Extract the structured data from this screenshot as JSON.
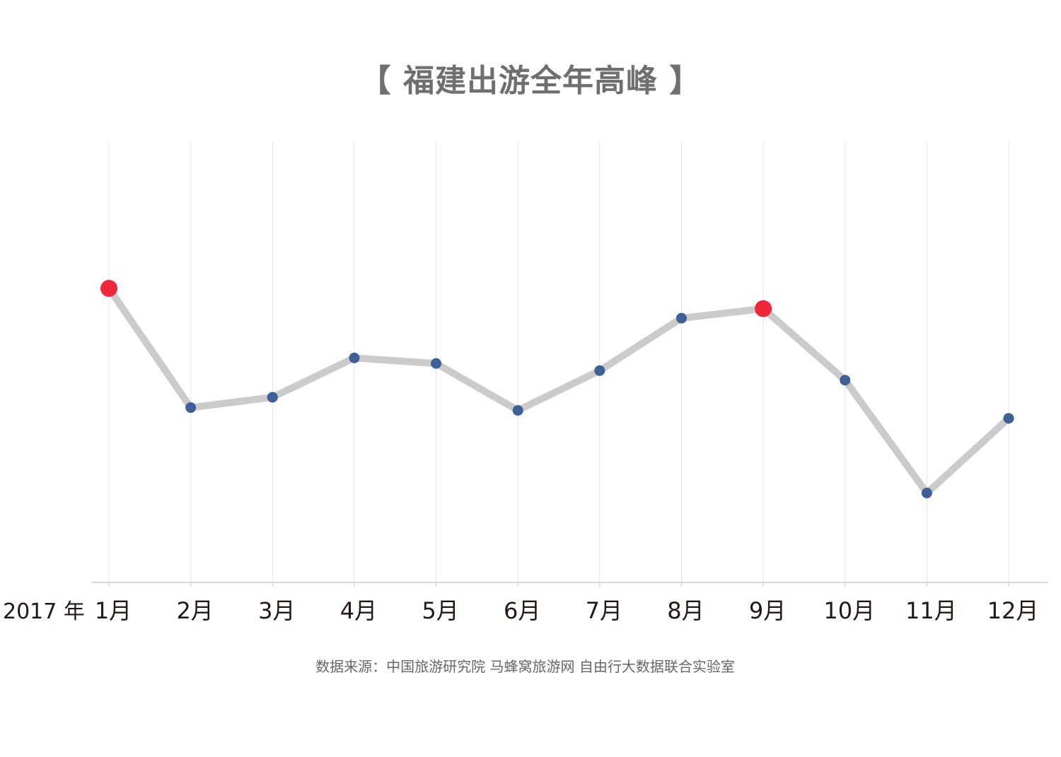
{
  "chart_data": {
    "type": "line",
    "title": "【 福建出游全年高峰 】",
    "year_label": "2017 年",
    "categories": [
      "1月",
      "2月",
      "3月",
      "4月",
      "5月",
      "6月",
      "7月",
      "8月",
      "9月",
      "10月",
      "11月",
      "12月"
    ],
    "values": [
      74,
      44,
      46.6,
      56.5,
      55.1,
      43.3,
      53.3,
      66.5,
      68.9,
      50.9,
      22.5,
      41.3
    ],
    "highlighted_points": [
      "1月",
      "9月"
    ],
    "ylim": [
      0,
      111
    ],
    "y_axis_labels_shown": false,
    "grid": "vertical",
    "source": "数据来源：中国旅游研究院 马蜂窝旅游网 自由行大数据联合实验室",
    "colors": {
      "line": "#cbcbcb",
      "point": "#3e5f97",
      "highlight": "#f0263a",
      "grid": "#e4e4e4",
      "axis": "#d9d9d9",
      "title": "#6f6f6f",
      "tick_text": "#231815",
      "source_text": "#666666"
    }
  }
}
